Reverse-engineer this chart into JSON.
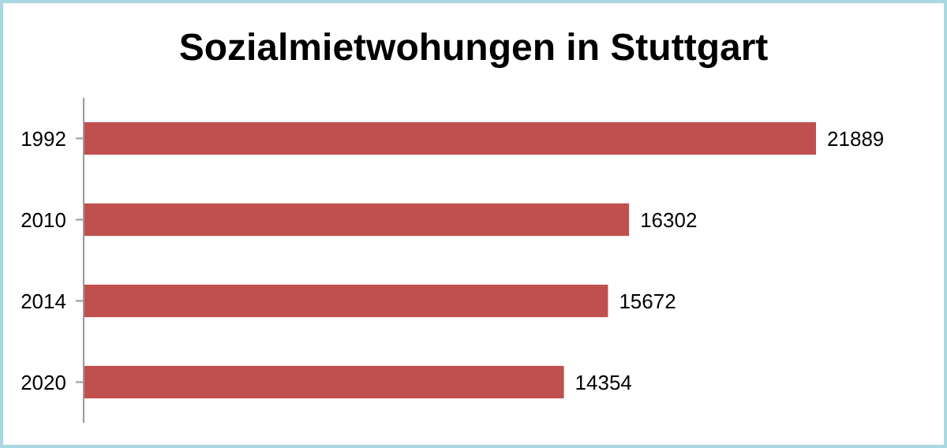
{
  "chart_data": {
    "type": "bar",
    "orientation": "horizontal",
    "title": "Sozialmietwohungen in Stuttgart",
    "categories": [
      "1992",
      "2010",
      "2014",
      "2020"
    ],
    "values": [
      21889,
      16302,
      15672,
      14354
    ],
    "color": "#c0504d",
    "data_labels": true
  }
}
